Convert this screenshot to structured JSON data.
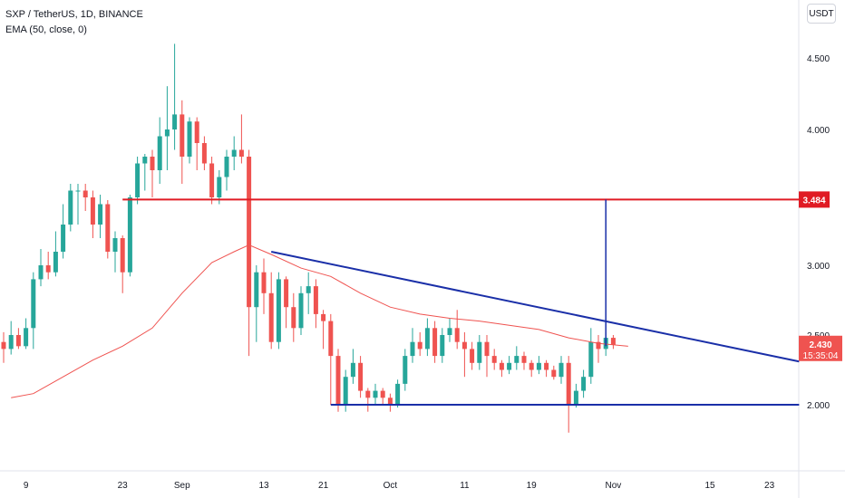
{
  "header": {
    "symbol_line": "SXP / TetherUS, 1D, BINANCE",
    "indicator_line": "EMA (50, close, 0)",
    "currency_button": "USDT"
  },
  "colors": {
    "up": "#26a69a",
    "down": "#ef5350",
    "ema": "#ef5350",
    "level_line": "#e01b24",
    "trend_line": "#1a2fa8",
    "price_tag": "#ef5350"
  },
  "chart_data": {
    "type": "candlestick",
    "y_ticks": [
      "2.000",
      "2.500",
      "3.000",
      "4.000",
      "4.500"
    ],
    "x_ticks": [
      "9",
      "23",
      "Sep",
      "13",
      "21",
      "Oct",
      "11",
      "19",
      "Nov",
      "15",
      "23"
    ],
    "price_tags": {
      "level": "3.484",
      "last_price": "2.430",
      "countdown": "15:35:04"
    },
    "candles": [
      [
        2.45,
        2.4,
        2.52,
        2.3
      ],
      [
        2.4,
        2.5,
        2.6,
        2.36
      ],
      [
        2.5,
        2.42,
        2.55,
        2.4
      ],
      [
        2.42,
        2.55,
        2.62,
        2.4
      ],
      [
        2.55,
        2.9,
        2.95,
        2.4
      ],
      [
        2.9,
        3.0,
        3.12,
        2.85
      ],
      [
        3.0,
        2.95,
        3.1,
        2.9
      ],
      [
        2.95,
        3.1,
        3.25,
        2.92
      ],
      [
        3.1,
        3.3,
        3.45,
        3.05
      ],
      [
        3.3,
        3.55,
        3.6,
        3.25
      ],
      [
        3.55,
        3.55,
        3.6,
        3.3
      ],
      [
        3.55,
        3.5,
        3.6,
        3.4
      ],
      [
        3.5,
        3.3,
        3.55,
        3.2
      ],
      [
        3.3,
        3.45,
        3.52,
        3.2
      ],
      [
        3.45,
        3.1,
        3.48,
        3.05
      ],
      [
        3.1,
        3.2,
        3.25,
        2.95
      ],
      [
        3.2,
        2.95,
        3.22,
        2.8
      ],
      [
        2.95,
        3.5,
        3.52,
        2.92
      ],
      [
        3.5,
        3.75,
        3.8,
        3.45
      ],
      [
        3.75,
        3.8,
        3.82,
        3.55
      ],
      [
        3.8,
        3.7,
        3.85,
        3.5
      ],
      [
        3.7,
        3.95,
        4.08,
        3.6
      ],
      [
        3.95,
        4.0,
        4.3,
        3.7
      ],
      [
        4.0,
        4.1,
        4.6,
        3.85
      ],
      [
        4.1,
        3.8,
        4.2,
        3.6
      ],
      [
        3.8,
        4.05,
        4.08,
        3.75
      ],
      [
        4.05,
        3.9,
        4.08,
        3.7
      ],
      [
        3.9,
        3.75,
        3.95,
        3.7
      ],
      [
        3.75,
        3.5,
        3.8,
        3.45
      ],
      [
        3.5,
        3.65,
        3.7,
        3.45
      ],
      [
        3.65,
        3.8,
        3.85,
        3.55
      ],
      [
        3.8,
        3.85,
        3.95,
        3.7
      ],
      [
        3.85,
        3.8,
        4.1,
        3.75
      ],
      [
        3.8,
        2.7,
        3.85,
        2.35
      ],
      [
        2.7,
        2.95,
        3.0,
        2.45
      ],
      [
        2.95,
        2.8,
        3.05,
        2.65
      ],
      [
        2.8,
        2.45,
        2.95,
        2.4
      ],
      [
        2.45,
        2.9,
        2.95,
        2.4
      ],
      [
        2.9,
        2.7,
        2.92,
        2.55
      ],
      [
        2.7,
        2.55,
        2.8,
        2.45
      ],
      [
        2.55,
        2.8,
        2.85,
        2.5
      ],
      [
        2.8,
        2.85,
        2.95,
        2.65
      ],
      [
        2.85,
        2.65,
        2.9,
        2.55
      ],
      [
        2.65,
        2.6,
        2.68,
        2.4
      ],
      [
        2.6,
        2.35,
        2.65,
        2.0
      ],
      [
        2.35,
        2.0,
        2.4,
        1.95
      ],
      [
        2.0,
        2.2,
        2.25,
        1.95
      ],
      [
        2.2,
        2.3,
        2.4,
        2.15
      ],
      [
        2.3,
        2.1,
        2.35,
        2.05
      ],
      [
        2.1,
        2.05,
        2.12,
        1.95
      ],
      [
        2.05,
        2.1,
        2.15,
        2.0
      ],
      [
        2.1,
        2.05,
        2.12,
        2.0
      ],
      [
        2.05,
        2.0,
        2.08,
        1.95
      ],
      [
        2.0,
        2.15,
        2.18,
        1.98
      ],
      [
        2.15,
        2.35,
        2.4,
        2.1
      ],
      [
        2.35,
        2.45,
        2.55,
        2.3
      ],
      [
        2.45,
        2.4,
        2.52,
        2.35
      ],
      [
        2.4,
        2.55,
        2.62,
        2.35
      ],
      [
        2.55,
        2.35,
        2.6,
        2.3
      ],
      [
        2.35,
        2.5,
        2.55,
        2.3
      ],
      [
        2.5,
        2.55,
        2.62,
        2.45
      ],
      [
        2.55,
        2.45,
        2.68,
        2.4
      ],
      [
        2.45,
        2.4,
        2.52,
        2.2
      ],
      [
        2.4,
        2.3,
        2.45,
        2.25
      ],
      [
        2.3,
        2.45,
        2.5,
        2.25
      ],
      [
        2.45,
        2.35,
        2.5,
        2.2
      ],
      [
        2.35,
        2.3,
        2.4,
        2.25
      ],
      [
        2.3,
        2.25,
        2.32,
        2.2
      ],
      [
        2.25,
        2.3,
        2.35,
        2.22
      ],
      [
        2.3,
        2.35,
        2.42,
        2.25
      ],
      [
        2.35,
        2.3,
        2.38,
        2.25
      ],
      [
        2.3,
        2.25,
        2.32,
        2.2
      ],
      [
        2.25,
        2.3,
        2.35,
        2.22
      ],
      [
        2.3,
        2.25,
        2.32,
        2.2
      ],
      [
        2.25,
        2.2,
        2.28,
        2.18
      ],
      [
        2.2,
        2.3,
        2.35,
        2.15
      ],
      [
        2.3,
        2.0,
        2.35,
        1.8
      ],
      [
        2.0,
        2.1,
        2.15,
        1.98
      ],
      [
        2.1,
        2.2,
        2.25,
        2.05
      ],
      [
        2.2,
        2.45,
        2.55,
        2.15
      ],
      [
        2.45,
        2.4,
        2.5,
        2.3
      ],
      [
        2.4,
        2.48,
        2.52,
        2.35
      ],
      [
        2.48,
        2.43,
        2.5,
        2.4
      ]
    ],
    "ema": [
      [
        1,
        2.05
      ],
      [
        4,
        2.08
      ],
      [
        8,
        2.2
      ],
      [
        12,
        2.32
      ],
      [
        16,
        2.42
      ],
      [
        20,
        2.55
      ],
      [
        24,
        2.8
      ],
      [
        28,
        3.02
      ],
      [
        31,
        3.1
      ],
      [
        33,
        3.15
      ],
      [
        36,
        3.08
      ],
      [
        40,
        2.98
      ],
      [
        44,
        2.92
      ],
      [
        48,
        2.8
      ],
      [
        52,
        2.7
      ],
      [
        56,
        2.65
      ],
      [
        60,
        2.62
      ],
      [
        64,
        2.6
      ],
      [
        68,
        2.57
      ],
      [
        72,
        2.54
      ],
      [
        76,
        2.48
      ],
      [
        80,
        2.44
      ],
      [
        84,
        2.42
      ]
    ],
    "lines": {
      "horizontal_level": {
        "price": 3.484,
        "from_index": 16
      },
      "descending_trendline": {
        "from": [
          36,
          3.1
        ],
        "to": [
          107,
          2.31
        ]
      },
      "support": {
        "price": 2.0,
        "from_index": 44,
        "to_index": 107
      },
      "measure_vertical": {
        "index": 81,
        "from": 2.42,
        "to": 3.484
      }
    }
  }
}
